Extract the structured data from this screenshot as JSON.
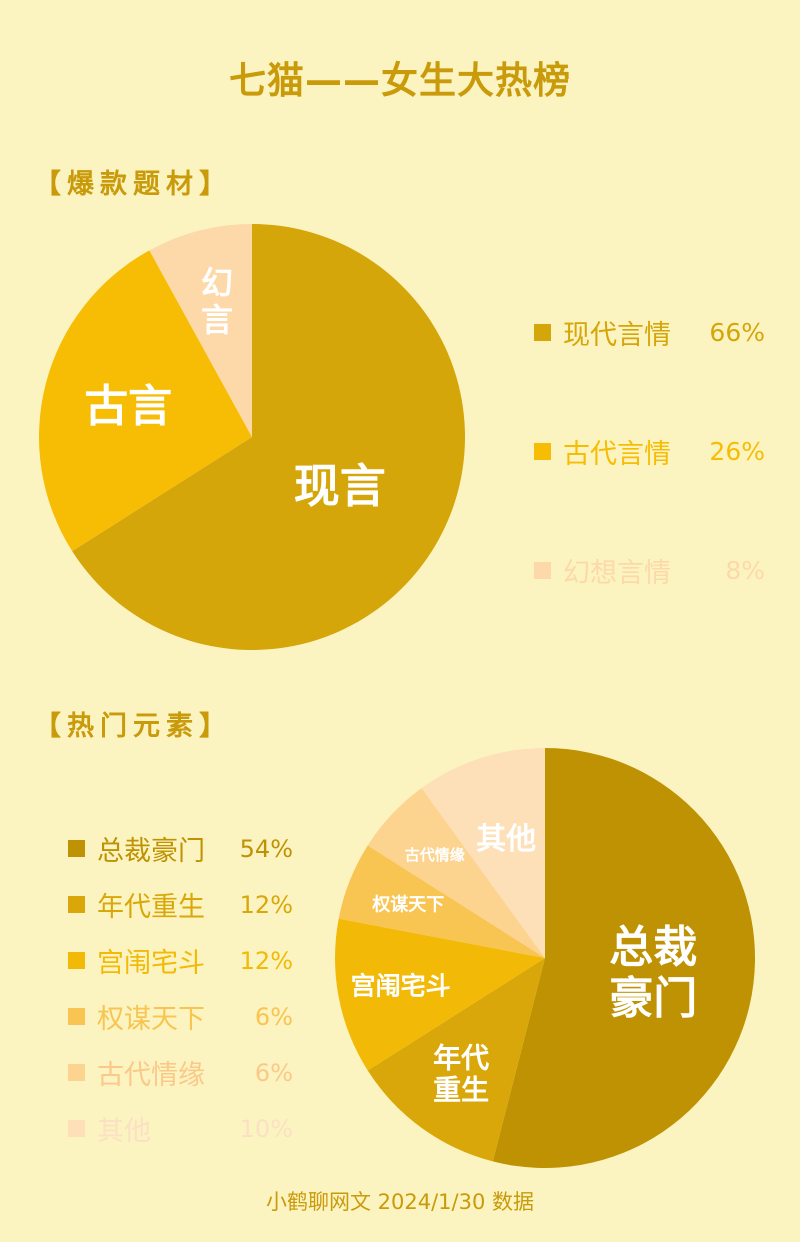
{
  "title": "七猫——女生大热榜",
  "footer": "小鹤聊网文 2024/1/30 数据",
  "chart_data": [
    {
      "type": "pie",
      "title": "【爆款题材】",
      "slices": [
        {
          "name": "现代言情",
          "value": 66,
          "display": "66%",
          "label": [
            "现言"
          ],
          "color": "#D4A60A",
          "text_color": "#D4A60A"
        },
        {
          "name": "古代言情",
          "value": 26,
          "display": "26%",
          "label": [
            "古言"
          ],
          "color": "#F7BD05",
          "text_color": "#F7BD05"
        },
        {
          "name": "幻想言情",
          "value": 8,
          "display": "8%",
          "label": [
            "幻",
            "言"
          ],
          "color": "#FDD9A9",
          "text_color": "#FDD9A9"
        }
      ]
    },
    {
      "type": "pie",
      "title": "【热门元素】",
      "slices": [
        {
          "name": "总裁豪门",
          "value": 54,
          "display": "54%",
          "label": [
            "总裁",
            "豪门"
          ],
          "color": "#BF9203",
          "text_color": "#BF9203"
        },
        {
          "name": "年代重生",
          "value": 12,
          "display": "12%",
          "label": [
            "年代",
            "重生"
          ],
          "color": "#D9A709",
          "text_color": "#D9A709"
        },
        {
          "name": "宫闱宅斗",
          "value": 12,
          "display": "12%",
          "label": [
            "宫闱宅斗"
          ],
          "color": "#F2BA07",
          "text_color": "#F2BA07"
        },
        {
          "name": "权谋天下",
          "value": 6,
          "display": "6%",
          "label": [
            "权谋天下"
          ],
          "color": "#F8C452",
          "text_color": "#F8C452"
        },
        {
          "name": "古代情缘",
          "value": 6,
          "display": "6%",
          "label": [
            "古代情缘"
          ],
          "color": "#FCD38F",
          "text_color": "#FAC98A"
        },
        {
          "name": "其他",
          "value": 10,
          "display": "10%",
          "label": [
            "其他"
          ],
          "color": "#FDDFB8",
          "text_color": "#FBE0C4"
        }
      ]
    }
  ]
}
